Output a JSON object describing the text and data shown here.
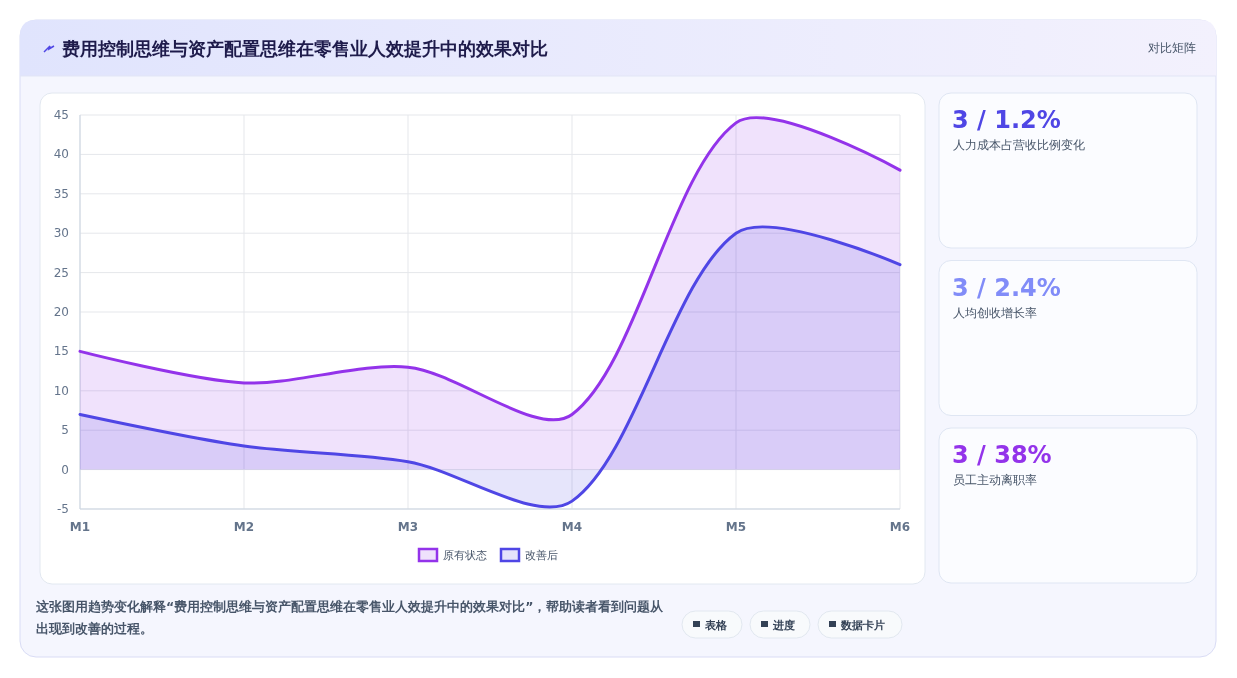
{
  "chart_data": [
    {
      "type": "area",
      "title": "费用控制思维与资产配置思维在零售业人效提升中的效果对比",
      "categories": [
        "M1",
        "M2",
        "M3",
        "M4",
        "M5",
        "M6"
      ],
      "series": [
        {
          "name": "原有状态",
          "color": "#9333ea",
          "values": [
            15,
            11,
            13,
            7,
            44,
            38
          ]
        },
        {
          "name": "改善后",
          "color": "#4f46e5",
          "values": [
            7,
            3,
            1,
            -4,
            30,
            26
          ]
        }
      ],
      "ylim": [
        -5,
        45
      ],
      "yticks": [
        -5,
        0,
        5,
        10,
        15,
        20,
        25,
        30,
        35,
        40,
        45
      ],
      "grid": true,
      "legend": "bottom",
      "annotations": [
        "这张图用趋势变化解释“费用控制思维与资产配置思维在零售业人效提升中的效果对比”，帮助读者看到问题从出现到改善的过程。",
        "表格",
        "进度",
        "数据卡片"
      ]
    },
    {
      "type": "other",
      "title": "对比矩阵",
      "annotations": [
        "3 / 1.2%",
        "人力成本占营收比例变化",
        "3 / 2.4%",
        "人均创收增长率",
        "3 / 38%",
        "员工主动离职率"
      ]
    }
  ]
}
